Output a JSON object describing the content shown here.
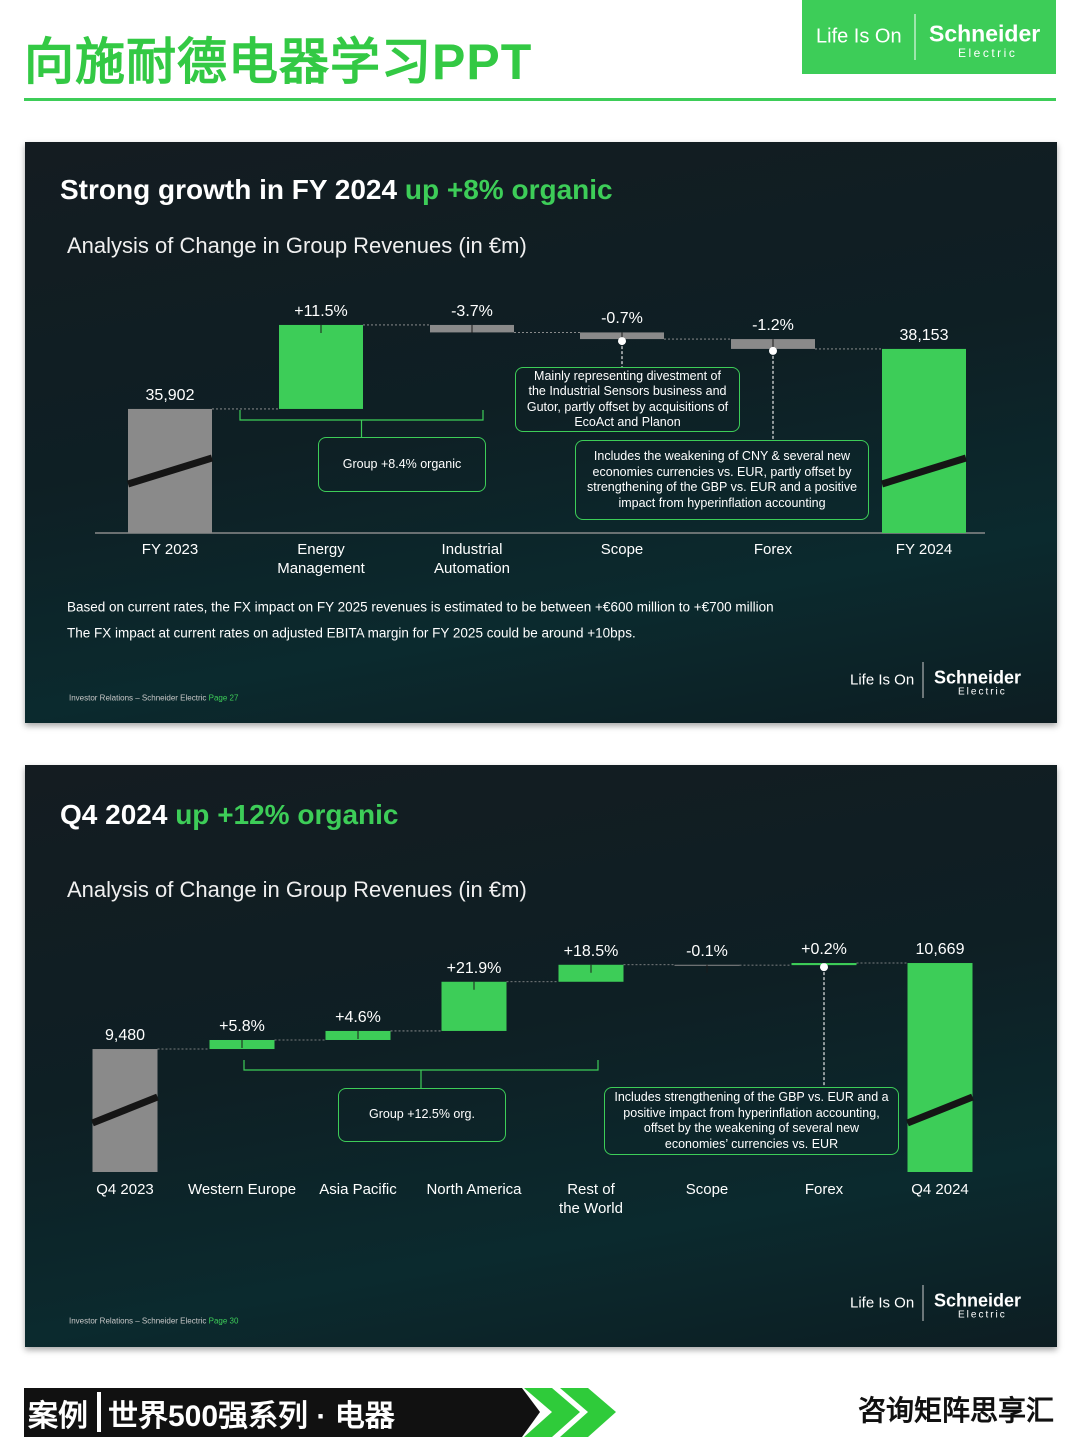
{
  "header": {
    "title": "向施耐德电器学习PPT",
    "logo": {
      "tagline": "Life Is On",
      "brand": "Schneider",
      "sub": "Electric"
    }
  },
  "chart_data": [
    {
      "type": "waterfall",
      "title": "Strong growth in FY 2024",
      "title_highlight": "up +8% organic",
      "subtitle": "Analysis of Change in Group Revenues (in €m)",
      "categories": [
        "FY 2023",
        "Energy\nManagement",
        "Industrial\nAutomation",
        "Scope",
        "Forex",
        "FY 2024"
      ],
      "values": [
        35902,
        3150,
        -280,
        -250,
        -369,
        38153
      ],
      "value_labels": [
        "35,902",
        null,
        null,
        null,
        null,
        "38,153"
      ],
      "growth": [
        null,
        {
          "value": 11.5,
          "label": "+11.5%"
        },
        {
          "value": -3.7,
          "label": "-3.7%"
        },
        {
          "value": -0.7,
          "label": "-0.7%"
        },
        {
          "value": -1.2,
          "label": "-1.2%"
        },
        null
      ],
      "colors": [
        "#8a8a8a",
        "#3dcd58",
        "#8a8a8a",
        "#8a8a8a",
        "#8a8a8a",
        "#3dcd58"
      ],
      "ylim": [
        31250,
        39500
      ],
      "annotations": [
        "Group +8.4% organic",
        "Mainly representing divestment of the Industrial Sensors business and Gutor, partly offset by acquisitions of EcoAct and Planon",
        "Includes the weakening of CNY & several new economies currencies vs. EUR, partly offset by strengthening of the GBP vs. EUR and a positive impact from hyperinflation accounting"
      ],
      "notes": [
        "Based on current rates, the FX impact on FY 2025 revenues is estimated to be between +€600 million to +€700 million",
        "The FX impact at current rates on adjusted EBITA margin for FY 2025 could be around +10bps."
      ],
      "source": "Investor Relations – Schneider Electric",
      "page": "Page 27"
    },
    {
      "type": "waterfall",
      "title": "Q4 2024",
      "title_highlight": "up +12% organic",
      "subtitle": "Analysis of Change in Group Revenues (in €m)",
      "categories": [
        "Q4 2023",
        "Western Europe",
        "Asia Pacific",
        "North America",
        "Rest of\nthe World",
        "Scope",
        "Forex",
        "Q4 2024"
      ],
      "values": [
        9480,
        125,
        125,
        680,
        235,
        -5,
        29,
        10669
      ],
      "value_labels": [
        "9,480",
        null,
        null,
        null,
        null,
        null,
        null,
        "10,669"
      ],
      "growth": [
        null,
        {
          "value": 5.8,
          "label": "+5.8%"
        },
        {
          "value": 4.6,
          "label": "+4.6%"
        },
        {
          "value": 21.9,
          "label": "+21.9%"
        },
        {
          "value": 18.5,
          "label": "+18.5%"
        },
        {
          "value": -0.1,
          "label": "-0.1%"
        },
        {
          "value": 0.2,
          "label": "+0.2%"
        },
        null
      ],
      "colors": [
        "#8a8a8a",
        "#3dcd58",
        "#3dcd58",
        "#3dcd58",
        "#3dcd58",
        "#8a8a8a",
        "#3dcd58",
        "#3dcd58"
      ],
      "ylim": [
        7780,
        10780
      ],
      "annotations": [
        "Group +12.5% org.",
        "Includes strengthening of the GBP vs. EUR and a positive impact from hyperinflation accounting, offset by the weakening of several new economies’ currencies vs. EUR"
      ],
      "notes": [],
      "source": "Investor Relations – Schneider Electric",
      "page": "Page 30"
    }
  ],
  "footer": {
    "series_label": "案例",
    "series_title": "世界500强系列 · 电器",
    "publisher": "咨询矩阵思享汇"
  }
}
